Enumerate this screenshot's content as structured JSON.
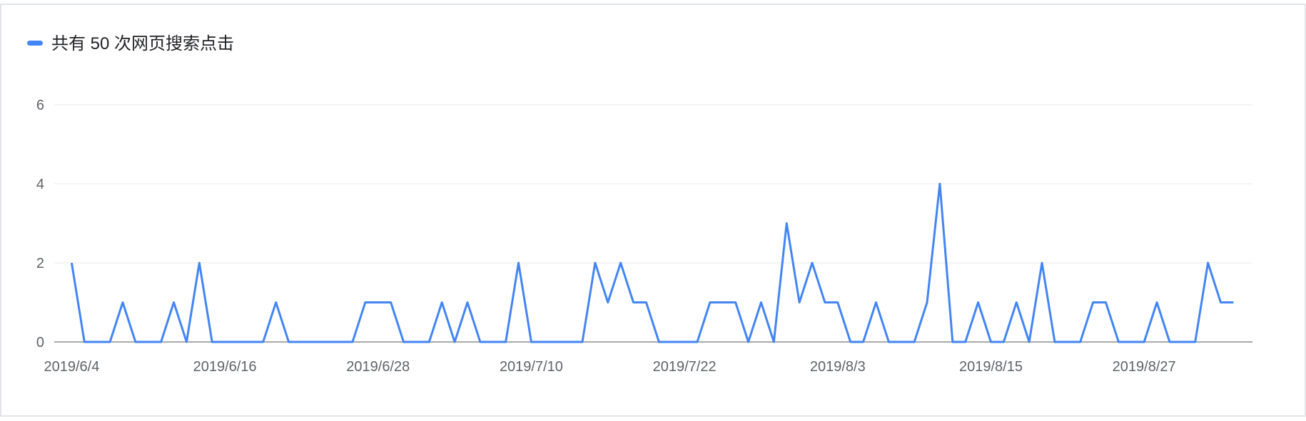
{
  "chart_data": {
    "type": "line",
    "categories": [
      "2019/6/4",
      null,
      null,
      null,
      null,
      null,
      null,
      null,
      null,
      null,
      null,
      null,
      "2019/6/16",
      null,
      null,
      null,
      null,
      null,
      null,
      null,
      null,
      null,
      null,
      null,
      "2019/6/28",
      null,
      null,
      null,
      null,
      null,
      null,
      null,
      null,
      null,
      null,
      null,
      "2019/7/10",
      null,
      null,
      null,
      null,
      null,
      null,
      null,
      null,
      null,
      null,
      null,
      "2019/7/22",
      null,
      null,
      null,
      null,
      null,
      null,
      null,
      null,
      null,
      null,
      null,
      "2019/8/3",
      null,
      null,
      null,
      null,
      null,
      null,
      null,
      null,
      null,
      null,
      null,
      "2019/8/15",
      null,
      null,
      null,
      null,
      null,
      null,
      null,
      null,
      null,
      null,
      null,
      "2019/8/27",
      null,
      null,
      null,
      null,
      null,
      null,
      null
    ],
    "series": [
      {
        "name": "共有 50 次网页搜索点击",
        "color": "#4285f4",
        "values": [
          2,
          0,
          0,
          0,
          1,
          0,
          0,
          0,
          1,
          0,
          2,
          0,
          0,
          0,
          0,
          0,
          1,
          0,
          0,
          0,
          0,
          0,
          0,
          1,
          1,
          1,
          0,
          0,
          0,
          1,
          0,
          1,
          0,
          0,
          0,
          2,
          0,
          0,
          0,
          0,
          0,
          2,
          1,
          2,
          1,
          1,
          0,
          0,
          0,
          0,
          1,
          1,
          1,
          0,
          1,
          0,
          3,
          1,
          2,
          1,
          1,
          0,
          0,
          1,
          0,
          0,
          0,
          1,
          4,
          0,
          0,
          1,
          0,
          0,
          1,
          0,
          2,
          0,
          0,
          0,
          1,
          1,
          0,
          0,
          0,
          1,
          0,
          0,
          0,
          2,
          1,
          1
        ]
      }
    ],
    "ylim": [
      0,
      6
    ],
    "yticks": [
      0,
      2,
      4,
      6
    ],
    "grid": true,
    "legend": "top-left"
  }
}
